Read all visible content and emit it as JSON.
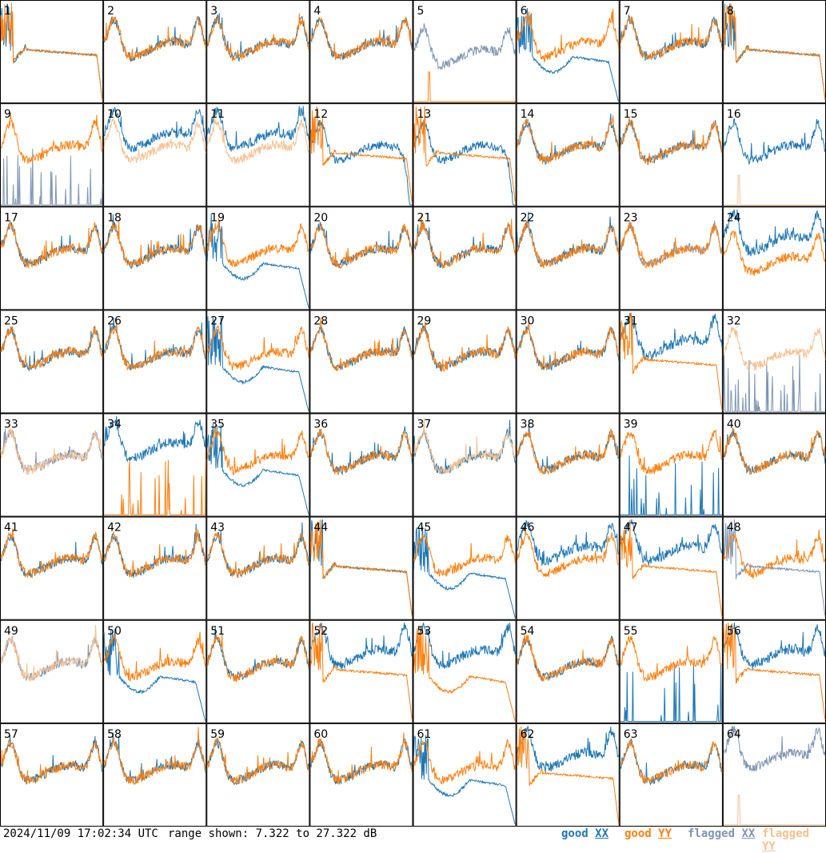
{
  "footer": {
    "timestamp": "2024/11/09 17:02:34 UTC",
    "range_text": "range shown: 7.322 to 27.322 dB"
  },
  "legend": [
    {
      "key": "good_xx",
      "label": "good XX",
      "color": "#1f77b4"
    },
    {
      "key": "good_yy",
      "label": "good YY",
      "color": "#ff7f0e"
    },
    {
      "key": "flagged_xx",
      "label": "flagged XX",
      "color": "#7f96b2"
    },
    {
      "key": "flagged_yy",
      "label": "flagged YY",
      "color": "#f7c08f"
    }
  ],
  "chart_data": {
    "type": "line",
    "title": "",
    "ylim": [
      7.322,
      27.322
    ],
    "y_unit": "dB",
    "grid_rows": 8,
    "grid_cols": 8,
    "panel_labels": [
      "1",
      "2",
      "3",
      "4",
      "5",
      "6",
      "7",
      "8",
      "9",
      "10",
      "11",
      "12",
      "13",
      "14",
      "15",
      "16",
      "17",
      "18",
      "19",
      "20",
      "21",
      "22",
      "23",
      "24",
      "25",
      "26",
      "27",
      "28",
      "29",
      "30",
      "31",
      "32",
      "33",
      "34",
      "35",
      "36",
      "37",
      "38",
      "39",
      "40",
      "41",
      "42",
      "43",
      "44",
      "45",
      "46",
      "47",
      "48",
      "49",
      "50",
      "51",
      "52",
      "53",
      "54",
      "55",
      "56",
      "57",
      "58",
      "59",
      "60",
      "61",
      "62",
      "63",
      "64"
    ],
    "panel_shapes": {
      "xx": [
        "bandpass",
        "typical",
        "typical",
        "typical",
        "typical_low",
        "dip",
        "typical",
        "bandpass",
        "spikes",
        "typical_hi",
        "typical_hi",
        "drooping",
        "drooping",
        "typical",
        "typical",
        "typical",
        "typical",
        "typical",
        "dip",
        "typical",
        "typical",
        "typical",
        "typical",
        "typical_hi",
        "typical",
        "typical",
        "dip",
        "typical",
        "typical",
        "typical",
        "typical_hi",
        "spikes",
        "typical",
        "typical_hi",
        "dip",
        "typical",
        "typical",
        "typical",
        "spikes",
        "typical",
        "typical",
        "typical",
        "typical",
        "bandpass",
        "dip",
        "typical_hi",
        "typical_hi",
        "bandpass",
        "typical",
        "dip",
        "typical",
        "typical_hi",
        "typical_hi",
        "typical",
        "spikes",
        "typical_hi",
        "typical",
        "typical",
        "typical",
        "typical",
        "dip",
        "typical_hi",
        "typical",
        "typical_hi"
      ],
      "yy": [
        "bandpass",
        "typical",
        "typical",
        "typical",
        "flat_low",
        "typical",
        "typical",
        "bandpass",
        "typical",
        "typical",
        "typical",
        "bandpass",
        "bandpass",
        "typical",
        "typical",
        "flat_low",
        "typical",
        "typical",
        "typical",
        "typical",
        "typical",
        "typical",
        "typical",
        "typical_low",
        "typical",
        "typical",
        "typical",
        "typical",
        "typical",
        "typical",
        "bandpass",
        "typical",
        "typical",
        "spikes",
        "typical",
        "typical",
        "typical",
        "typical",
        "typical",
        "typical",
        "typical",
        "typical",
        "typical",
        "bandpass",
        "typical",
        "typical",
        "bandpass",
        "typical",
        "typical",
        "typical",
        "typical",
        "bandpass",
        "dip",
        "typical",
        "typical",
        "bandpass",
        "typical",
        "typical",
        "typical",
        "typical",
        "typical",
        "bandpass",
        "typical",
        "flat_low"
      ]
    },
    "panel_flags": {
      "xx": [
        5,
        9,
        23,
        32,
        33,
        48,
        49,
        64
      ],
      "yy": [
        10,
        11,
        16,
        32,
        33,
        37,
        49,
        64
      ]
    }
  }
}
